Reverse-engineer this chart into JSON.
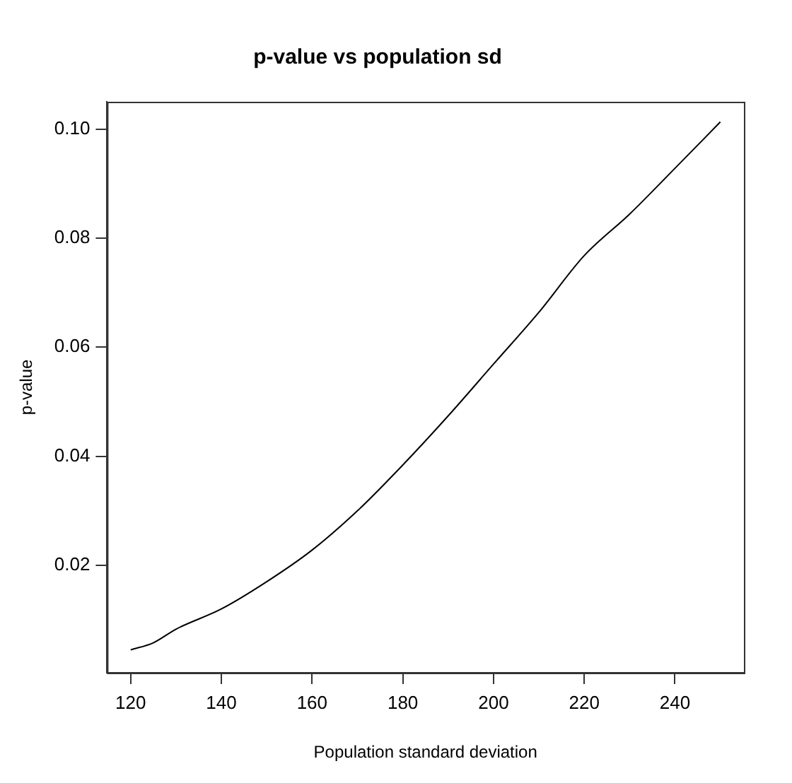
{
  "chart_data": {
    "type": "line",
    "title": "p-value vs population sd",
    "xlabel": "Population standard deviation",
    "ylabel": "p-value",
    "x": [
      120,
      125,
      130,
      140,
      150,
      160,
      170,
      180,
      190,
      200,
      210,
      220,
      230,
      240,
      250
    ],
    "series": [
      {
        "color": "#000000",
        "values": [
          0.0045,
          0.0058,
          0.0083,
          0.012,
          0.017,
          0.0228,
          0.03,
          0.0384,
          0.0474,
          0.0569,
          0.0664,
          0.0768,
          0.0844,
          0.0928,
          0.1013
        ]
      }
    ],
    "xlim": [
      114.8,
      255.2
    ],
    "ylim": [
      0.0003,
      0.105
    ],
    "xticks": [
      120,
      140,
      160,
      180,
      200,
      220,
      240
    ],
    "yticks": [
      0.02,
      0.04,
      0.06,
      0.08,
      {
        "value": 0.1,
        "label": "0.10"
      }
    ],
    "grid": false,
    "legend": false,
    "marker": "none",
    "line_style": "solid"
  }
}
